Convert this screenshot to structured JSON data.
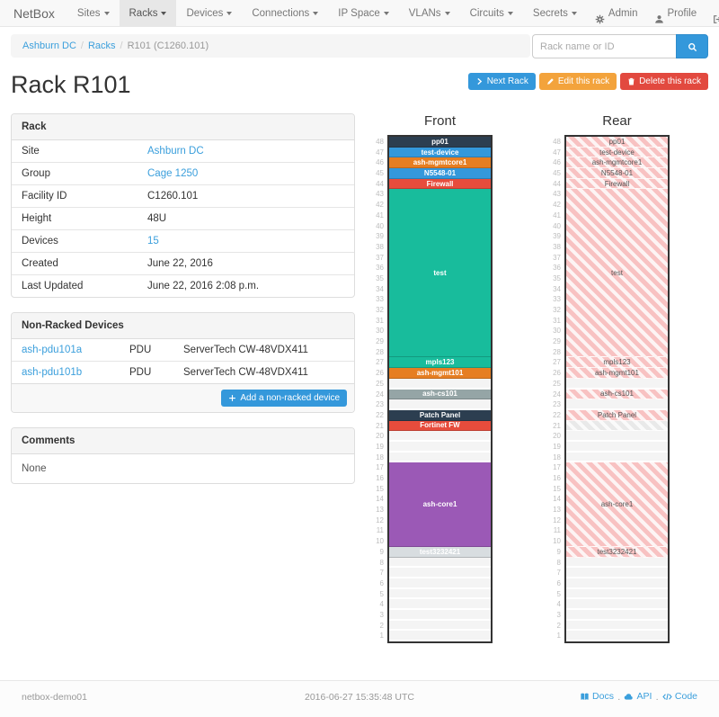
{
  "navbar": {
    "brand": "NetBox",
    "items": [
      {
        "label": "Sites",
        "active": false
      },
      {
        "label": "Racks",
        "active": true
      },
      {
        "label": "Devices",
        "active": false
      },
      {
        "label": "Connections",
        "active": false
      },
      {
        "label": "IP Space",
        "active": false
      },
      {
        "label": "VLANs",
        "active": false
      },
      {
        "label": "Circuits",
        "active": false
      },
      {
        "label": "Secrets",
        "active": false
      }
    ],
    "right_items": [
      {
        "label": "Admin",
        "icon": "gear-icon"
      },
      {
        "label": "Profile",
        "icon": "user-icon"
      },
      {
        "label": "Log out",
        "icon": "logout-icon"
      }
    ]
  },
  "breadcrumb": {
    "items": [
      {
        "label": "Ashburn DC",
        "link": true
      },
      {
        "label": "Racks",
        "link": true
      },
      {
        "label": "R101 (C1260.101)",
        "link": false
      }
    ]
  },
  "search": {
    "placeholder": "Rack name or ID",
    "button_icon": "search-icon"
  },
  "page": {
    "title": "Rack R101"
  },
  "actions": {
    "next": "Next Rack",
    "edit": "Edit this rack",
    "delete": "Delete this rack"
  },
  "rack_panel": {
    "title": "Rack",
    "rows": [
      {
        "label": "Site",
        "value": "Ashburn DC",
        "link": true
      },
      {
        "label": "Group",
        "value": "Cage 1250",
        "link": true
      },
      {
        "label": "Facility ID",
        "value": "C1260.101",
        "link": false
      },
      {
        "label": "Height",
        "value": "48U",
        "link": false
      },
      {
        "label": "Devices",
        "value": "15",
        "link": true
      },
      {
        "label": "Created",
        "value": "June 22, 2016",
        "link": false
      },
      {
        "label": "Last Updated",
        "value": "June 22, 2016 2:08 p.m.",
        "link": false
      }
    ]
  },
  "nonracked_panel": {
    "title": "Non-Racked Devices",
    "rows": [
      {
        "name": "ash-pdu101a",
        "role": "PDU",
        "model": "ServerTech CW-48VDX411"
      },
      {
        "name": "ash-pdu101b",
        "role": "PDU",
        "model": "ServerTech CW-48VDX411"
      }
    ],
    "add_button": "Add a non-racked device"
  },
  "comments_panel": {
    "title": "Comments",
    "body": "None"
  },
  "elevations": {
    "colors": {
      "dark": "#2c3e50",
      "blue": "#3498db",
      "orange": "#e67e22",
      "red": "#e74c3c",
      "teal": "#18bc9c",
      "gray": "#95a5a6",
      "purple": "#9b59b6",
      "lightgray": "#d8dde0"
    },
    "front": {
      "title": "Front",
      "top_unit": 48,
      "segments": [
        {
          "h": 1,
          "label": "pp01",
          "color": "dark"
        },
        {
          "h": 1,
          "label": "test-device",
          "color": "blue"
        },
        {
          "h": 1,
          "label": "ash-mgmtcore1",
          "color": "orange"
        },
        {
          "h": 1,
          "label": "N5548-01",
          "color": "blue"
        },
        {
          "h": 1,
          "label": "Firewall",
          "color": "red"
        },
        {
          "h": 16,
          "label": "test",
          "color": "teal"
        },
        {
          "h": 1,
          "label": "mpls123",
          "color": "teal"
        },
        {
          "h": 1,
          "label": "ash-mgmt101",
          "color": "orange"
        },
        {
          "h": 1,
          "empty": true
        },
        {
          "h": 1,
          "label": "ash-cs101",
          "color": "gray"
        },
        {
          "h": 1,
          "empty": true
        },
        {
          "h": 1,
          "label": "Patch Panel",
          "color": "dark"
        },
        {
          "h": 1,
          "label": "Fortinet FW",
          "color": "red"
        },
        {
          "h": 3,
          "empty": true
        },
        {
          "h": 8,
          "label": "ash-core1",
          "color": "purple"
        },
        {
          "h": 1,
          "label": "test3232421",
          "color": "lightgray",
          "text": "#ffffff"
        },
        {
          "h": 8,
          "empty": true
        }
      ]
    },
    "rear": {
      "title": "Rear",
      "top_unit": 48,
      "segments": [
        {
          "h": 1,
          "label": "pp01",
          "hatch": "pink"
        },
        {
          "h": 1,
          "label": "test-device",
          "hatch": "pink"
        },
        {
          "h": 1,
          "label": "ash-mgmtcore1",
          "hatch": "pink"
        },
        {
          "h": 1,
          "label": "N5548-01",
          "hatch": "pink"
        },
        {
          "h": 1,
          "label": "Firewall",
          "hatch": "pink"
        },
        {
          "h": 16,
          "label": "test",
          "hatch": "pink"
        },
        {
          "h": 1,
          "label": "mpls123",
          "hatch": "pink"
        },
        {
          "h": 1,
          "label": "ash-mgmt101",
          "hatch": "pink"
        },
        {
          "h": 1,
          "empty": true
        },
        {
          "h": 1,
          "label": "ash-cs101",
          "hatch": "pink"
        },
        {
          "h": 1,
          "empty": true
        },
        {
          "h": 1,
          "label": "Patch Panel",
          "hatch": "pink"
        },
        {
          "h": 1,
          "label": "",
          "hatch": "gray"
        },
        {
          "h": 3,
          "empty": true
        },
        {
          "h": 8,
          "label": "ash-core1",
          "hatch": "pink"
        },
        {
          "h": 1,
          "label": "test3232421",
          "hatch": "pink"
        },
        {
          "h": 8,
          "empty": true
        }
      ]
    }
  },
  "footer": {
    "host": "netbox-demo01",
    "timestamp": "2016-06-27 15:35:48 UTC",
    "links": [
      {
        "label": "Docs",
        "icon": "book-icon"
      },
      {
        "label": "API",
        "icon": "cloud-icon"
      },
      {
        "label": "Code",
        "icon": "code-icon"
      }
    ]
  }
}
